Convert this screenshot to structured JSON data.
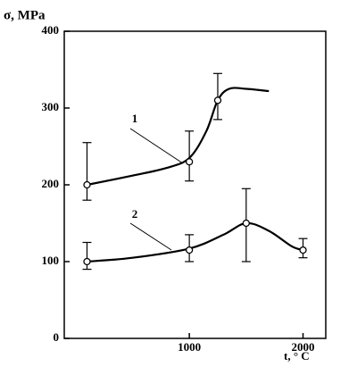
{
  "chart_data": {
    "type": "line",
    "y_label": "σ, MPa",
    "x_label": "t, ° C",
    "xlim": [
      -100,
      2200
    ],
    "xticks": [
      1000,
      2000
    ],
    "ylim": [
      0,
      400
    ],
    "yticks": [
      0,
      100,
      200,
      300,
      400
    ],
    "color": "#000000",
    "series": [
      {
        "name": "1",
        "x": [
          100,
          1000,
          1250
        ],
        "values": [
          200,
          230,
          310
        ],
        "lower": [
          180,
          205,
          285
        ],
        "upper": [
          255,
          270,
          345
        ],
        "fit_x": [
          100,
          500,
          800,
          1000,
          1150,
          1250,
          1350,
          1500,
          1700
        ],
        "fit_y": [
          200,
          212,
          222,
          235,
          270,
          310,
          325,
          325,
          322
        ]
      },
      {
        "name": "2",
        "x": [
          100,
          1000,
          1500,
          2000
        ],
        "values": [
          100,
          115,
          150,
          115
        ],
        "lower": [
          90,
          100,
          100,
          105
        ],
        "upper": [
          125,
          135,
          195,
          130
        ],
        "fit_x": [
          100,
          500,
          1000,
          1300,
          1500,
          1700,
          1900,
          2000
        ],
        "fit_y": [
          100,
          105,
          117,
          135,
          150,
          140,
          120,
          115
        ]
      }
    ]
  }
}
